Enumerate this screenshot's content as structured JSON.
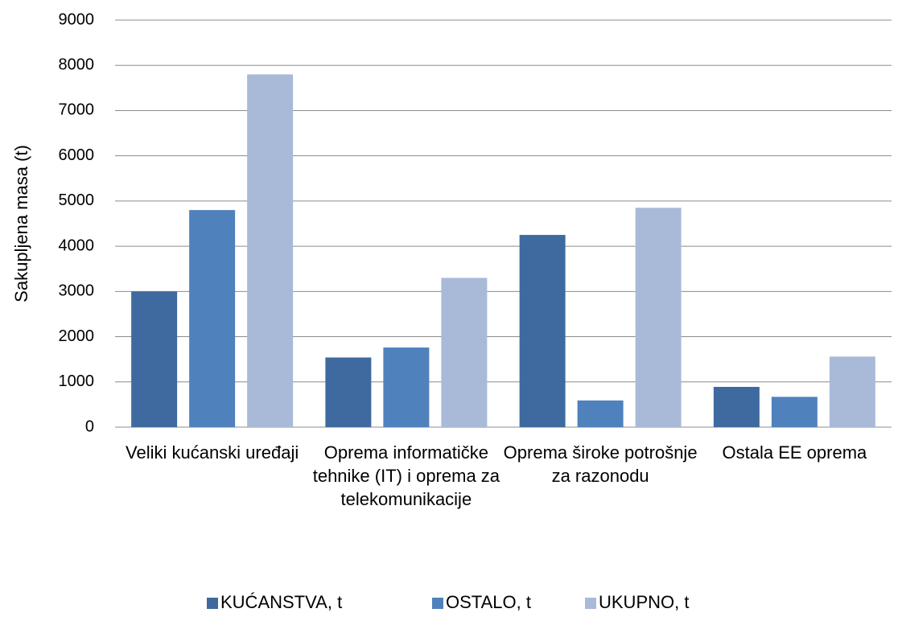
{
  "chart_data": {
    "type": "bar",
    "y_label": "Sakupljena masa (t)",
    "categories": [
      "Veliki kućanski uređaji",
      "Oprema informatičke tehnike (IT) i oprema za telekomunikacije",
      "Oprema široke potrošnje za razonodu",
      "Ostala EE oprema"
    ],
    "series": [
      {
        "name": "KUĆANSTVA, t",
        "color": "#3e6a9f",
        "values": [
          3000,
          1540,
          4250,
          890
        ]
      },
      {
        "name": "OSTALO, t",
        "color": "#4f81bd",
        "values": [
          4800,
          1760,
          590,
          670
        ]
      },
      {
        "name": "UKUPNO, t",
        "color": "#a9bad8",
        "values": [
          7800,
          3300,
          4850,
          1560
        ]
      }
    ],
    "ylim": [
      0,
      9000
    ],
    "yticks": [
      0,
      1000,
      2000,
      3000,
      4000,
      5000,
      6000,
      7000,
      8000,
      9000
    ],
    "grid": true,
    "legend": "bottom"
  }
}
